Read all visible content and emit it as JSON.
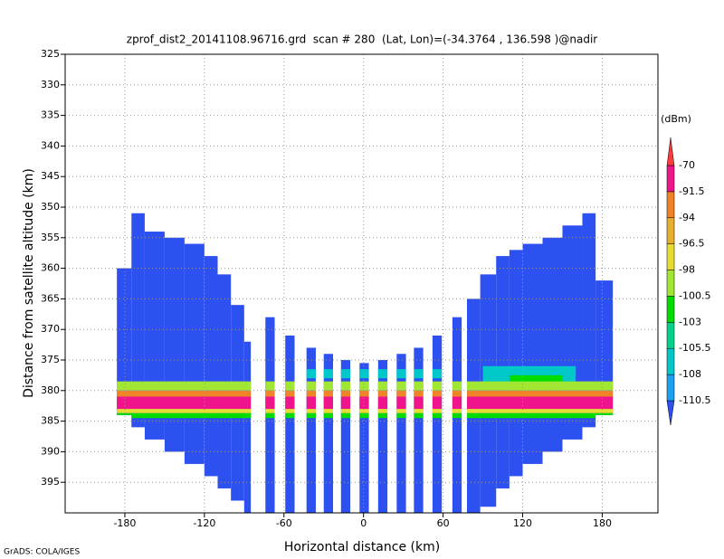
{
  "chart_data": {
    "type": "heatmap",
    "title": "zprof_dist2_20141108.96716.grd  scan # 280  (Lat, Lon)=(-34.3764 , 136.598 )@nadir",
    "xlabel": "Horizontal distance (km)",
    "ylabel": "Distance from satellite altitude (km)",
    "xlim": [
      -225,
      222
    ],
    "ylim": [
      400,
      325
    ],
    "xticks": [
      -180,
      -120,
      -60,
      0,
      60,
      120,
      180
    ],
    "yticks": [
      325,
      330,
      335,
      340,
      345,
      350,
      355,
      360,
      365,
      370,
      375,
      380,
      385,
      390,
      395
    ],
    "grid": true,
    "colorbar": {
      "label": "(dBm)",
      "levels": [
        -110.5,
        -108,
        -105.5,
        -103,
        -100.5,
        -98,
        -96.5,
        -94,
        -91.5,
        -70
      ],
      "colors": [
        "#2d50f0",
        "#1ea0f0",
        "#00c8c8",
        "#00d28c",
        "#00dc00",
        "#a0e632",
        "#e6dc32",
        "#e6af2d",
        "#f08228",
        "#f0148c",
        "#fa3c3c"
      ]
    },
    "strips": [
      {
        "x": [
          -186,
          -175
        ],
        "y": [
          360,
          384
        ],
        "value": -112
      },
      {
        "x": [
          -175,
          -165
        ],
        "y": [
          351,
          386
        ],
        "value": -112
      },
      {
        "x": [
          -165,
          -150
        ],
        "y": [
          354,
          388
        ],
        "value": -112
      },
      {
        "x": [
          -150,
          -135
        ],
        "y": [
          355,
          390
        ],
        "value": -112
      },
      {
        "x": [
          -135,
          -120
        ],
        "y": [
          356,
          392
        ],
        "value": -112
      },
      {
        "x": [
          -120,
          -110
        ],
        "y": [
          358,
          394
        ],
        "value": -112
      },
      {
        "x": [
          -110,
          -100
        ],
        "y": [
          361,
          396
        ],
        "value": -112
      },
      {
        "x": [
          -100,
          -90
        ],
        "y": [
          366,
          398
        ],
        "value": -112
      },
      {
        "x": [
          -90,
          -85
        ],
        "y": [
          372,
          400
        ],
        "value": -112
      },
      {
        "x": [
          -74,
          -67
        ],
        "y": [
          368,
          400
        ],
        "value": -112
      },
      {
        "x": [
          -59,
          -52
        ],
        "y": [
          371,
          400
        ],
        "value": -112
      },
      {
        "x": [
          -43,
          -36
        ],
        "y": [
          373,
          400
        ],
        "value": -112
      },
      {
        "x": [
          -30,
          -23
        ],
        "y": [
          374,
          400
        ],
        "value": -112
      },
      {
        "x": [
          -17,
          -10
        ],
        "y": [
          375,
          400
        ],
        "value": -112
      },
      {
        "x": [
          -3,
          4
        ],
        "y": [
          375.5,
          400
        ],
        "value": -112
      },
      {
        "x": [
          11,
          18
        ],
        "y": [
          375,
          400
        ],
        "value": -112
      },
      {
        "x": [
          25,
          32
        ],
        "y": [
          374,
          400
        ],
        "value": -112
      },
      {
        "x": [
          38,
          45
        ],
        "y": [
          373,
          400
        ],
        "value": -112
      },
      {
        "x": [
          52,
          59
        ],
        "y": [
          371,
          400
        ],
        "value": -112
      },
      {
        "x": [
          67,
          74
        ],
        "y": [
          368,
          400
        ],
        "value": -112
      },
      {
        "x": [
          78,
          88
        ],
        "y": [
          365,
          400
        ],
        "value": -112
      },
      {
        "x": [
          88,
          100
        ],
        "y": [
          361,
          399
        ],
        "value": -112
      },
      {
        "x": [
          100,
          110
        ],
        "y": [
          358,
          396
        ],
        "value": -112
      },
      {
        "x": [
          110,
          120
        ],
        "y": [
          357,
          394
        ],
        "value": -112
      },
      {
        "x": [
          120,
          135
        ],
        "y": [
          356,
          392
        ],
        "value": -112
      },
      {
        "x": [
          135,
          150
        ],
        "y": [
          355,
          390
        ],
        "value": -112
      },
      {
        "x": [
          150,
          165
        ],
        "y": [
          353,
          388
        ],
        "value": -112
      },
      {
        "x": [
          165,
          175
        ],
        "y": [
          351,
          386
        ],
        "value": -112
      },
      {
        "x": [
          175,
          188
        ],
        "y": [
          362,
          384
        ],
        "value": -112
      }
    ],
    "band": [
      {
        "x": [
          -50,
          60
        ],
        "y": [
          376.5,
          378
        ],
        "value": -106.5
      },
      {
        "x": [
          90,
          160
        ],
        "y": [
          376,
          380
        ],
        "value": -106.5
      },
      {
        "x": [
          110,
          150
        ],
        "y": [
          377.5,
          380
        ],
        "value": -102
      },
      {
        "x": [
          -188,
          188
        ],
        "y": [
          378.5,
          380
        ],
        "value": -99
      },
      {
        "x": [
          -188,
          188
        ],
        "y": [
          380,
          381
        ],
        "value": -93
      },
      {
        "x": [
          -188,
          188
        ],
        "y": [
          381,
          383
        ],
        "value": -85
      },
      {
        "x": [
          -188,
          188
        ],
        "y": [
          383,
          383.7
        ],
        "value": -97
      },
      {
        "x": [
          -188,
          188
        ],
        "y": [
          383.7,
          384.5
        ],
        "value": -102
      }
    ]
  },
  "footer": "GrADS: COLA/IGES"
}
